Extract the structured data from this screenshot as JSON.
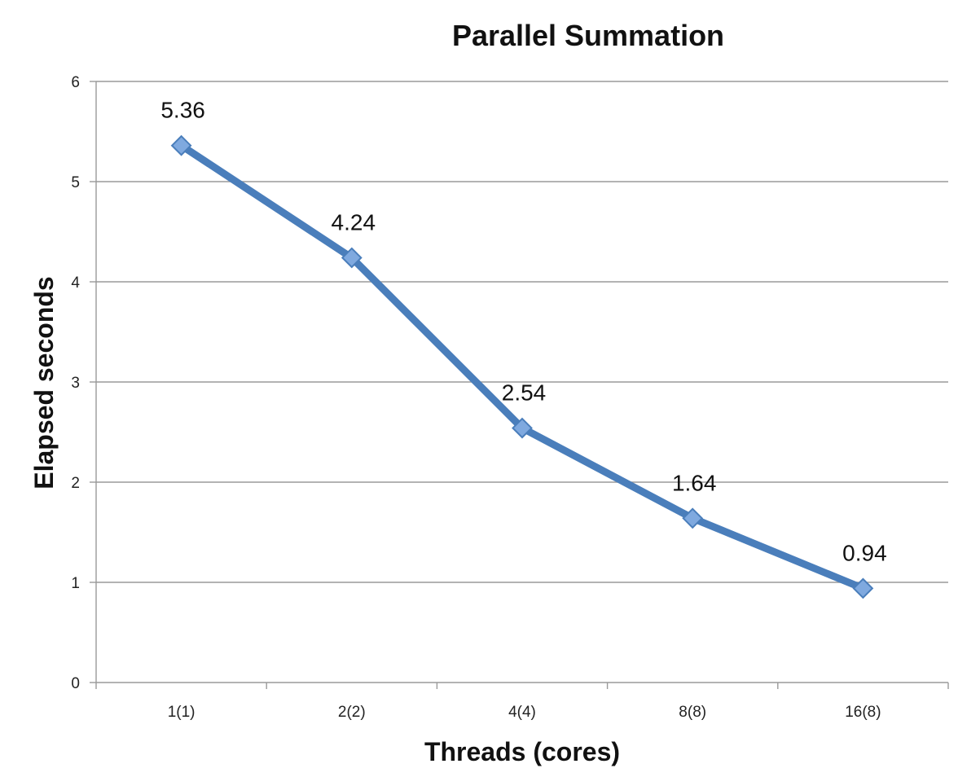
{
  "chart_data": {
    "type": "line",
    "title": "Parallel Summation",
    "xlabel": "Threads (cores)",
    "ylabel": "Elapsed seconds",
    "categories": [
      "1(1)",
      "2(2)",
      "4(4)",
      "8(8)",
      "16(8)"
    ],
    "series": [
      {
        "values": [
          5.36,
          4.24,
          2.54,
          1.64,
          0.94
        ],
        "data_labels": [
          "5.36",
          "4.24",
          "2.54",
          "1.64",
          "0.94"
        ],
        "color": "#4a7ebb",
        "marker": "diamond",
        "marker_color": "#7fa9df"
      }
    ],
    "ylim": [
      0,
      6
    ],
    "yticks": [
      "0",
      "1",
      "2",
      "3",
      "4",
      "5",
      "6"
    ],
    "grid": true,
    "legend": "none"
  }
}
